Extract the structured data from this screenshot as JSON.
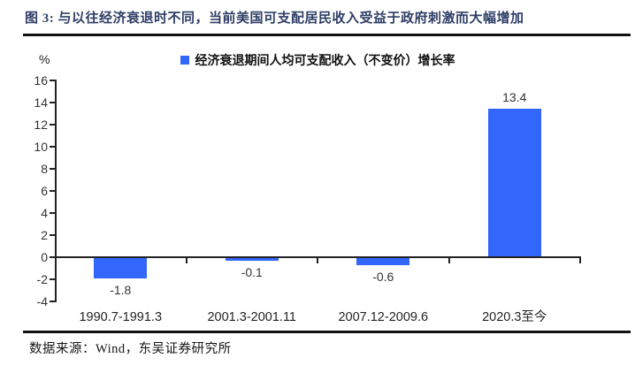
{
  "header": {
    "title": "图 3: 与以往经济衰退时不同，当前美国可支配居民收入受益于政府刺激而大幅增加"
  },
  "legend": {
    "label": "经济衰退期间人均可支配收入（不变价）增长率"
  },
  "footer": {
    "source": "数据来源：Wind，东吴证券研究所"
  },
  "colors": {
    "bar_blue": "#3366fa",
    "title_navy": "#2f3e66",
    "axis_black": "#222222"
  },
  "chart_data": {
    "type": "bar",
    "title": "经济衰退期间人均可支配收入（不变价）增长率",
    "categories": [
      "1990.7-1991.3",
      "2001.3-2001.11",
      "2007.12-2009.6",
      "2020.3至今"
    ],
    "values": [
      -1.8,
      -0.1,
      -0.6,
      13.4
    ],
    "data_labels": [
      "-1.8",
      "-0.1",
      "-0.6",
      "13.4"
    ],
    "xlabel": "",
    "ylabel": "%",
    "ylim": [
      -4,
      16
    ],
    "yticks": [
      16,
      14,
      12,
      10,
      8,
      6,
      4,
      2,
      0,
      -2,
      -4
    ],
    "bar_color": "#3366fa",
    "grid": false,
    "legend_position": "top-center"
  }
}
